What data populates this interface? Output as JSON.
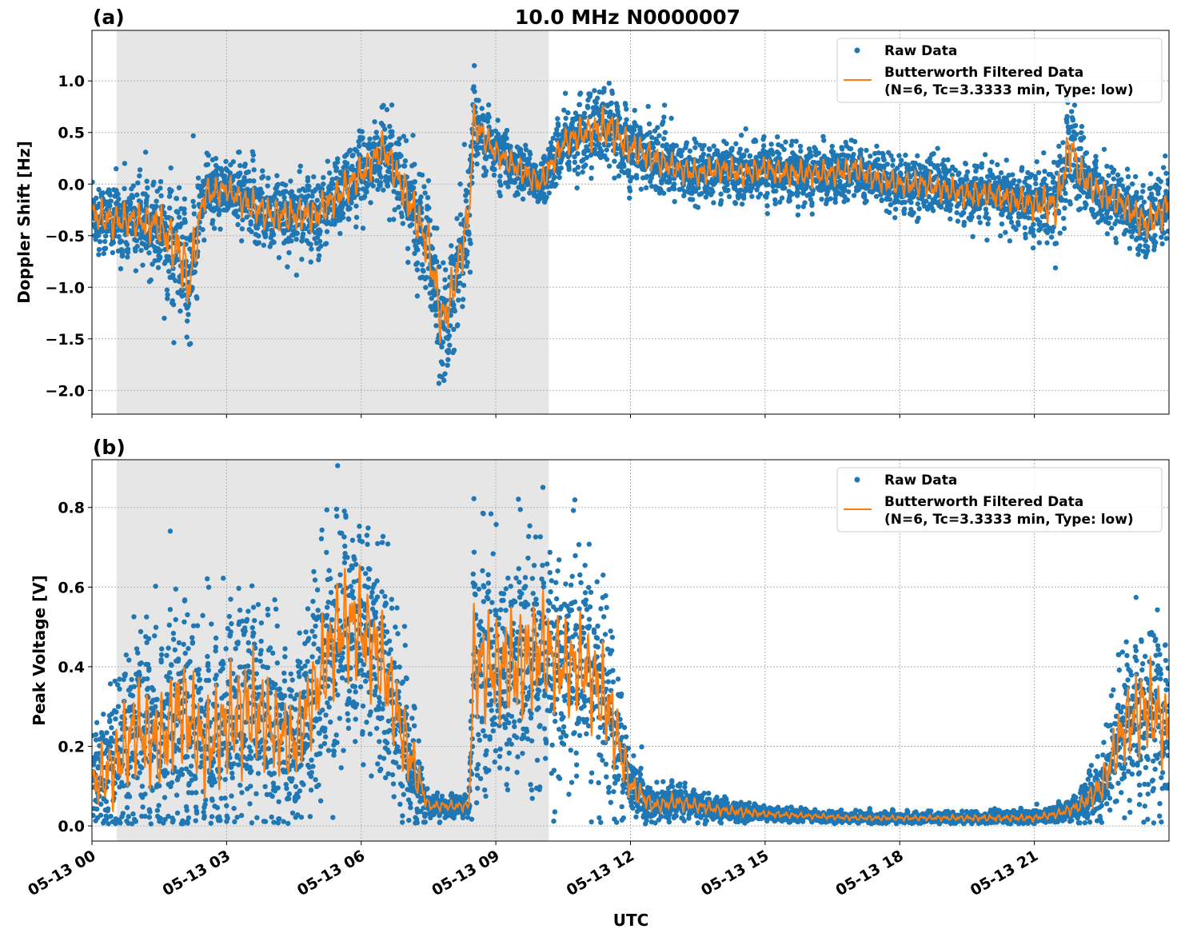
{
  "title": "10.0 MHz N0000007",
  "colors": {
    "raw": "#1f77b4",
    "filtered": "#ff7f0e",
    "shade": "#e6e6e6"
  },
  "chart_data": [
    {
      "type": "scatter+line",
      "panel_label": "(a)",
      "ylabel": "Doppler Shift [Hz]",
      "xlabel": "",
      "ylim": [
        -2.23,
        1.49
      ],
      "xlim_hours": [
        0,
        24
      ],
      "grid": true,
      "legend_placement": "top-right",
      "yticks": [
        "1.0",
        "0.5",
        "0.0",
        "−0.5",
        "−1.0",
        "−1.5",
        "−2.0"
      ],
      "ytick_values": [
        1.0,
        0.5,
        0.0,
        -0.5,
        -1.0,
        -1.5,
        -2.0
      ],
      "shaded_span_hours": [
        0.55,
        10.18
      ],
      "x_hours": [
        0,
        0.5,
        1,
        1.5,
        2,
        2.15,
        2.5,
        3,
        3.5,
        4,
        4.5,
        5,
        5.5,
        6,
        6.5,
        7,
        7.5,
        7.8,
        8,
        8.4,
        8.5,
        9,
        9.5,
        10,
        10.5,
        11,
        11.5,
        12,
        12.5,
        13,
        13.5,
        14,
        14.5,
        15,
        15.5,
        16,
        16.5,
        17,
        17.5,
        18,
        18.5,
        19,
        19.5,
        20,
        20.5,
        21,
        21.5,
        21.8,
        22,
        22.5,
        23,
        23.5,
        24
      ],
      "series": [
        {
          "name": "Butterworth Filtered Data\n(N=6, Tc=3.3333 min, Type: low)",
          "kind": "line",
          "values": [
            -0.3,
            -0.35,
            -0.35,
            -0.4,
            -0.7,
            -1.0,
            -0.1,
            -0.05,
            -0.2,
            -0.3,
            -0.3,
            -0.3,
            -0.1,
            0.1,
            0.35,
            -0.1,
            -0.6,
            -1.35,
            -1.1,
            -0.3,
            0.6,
            0.3,
            0.15,
            0.0,
            0.4,
            0.5,
            0.55,
            0.35,
            0.25,
            0.15,
            0.1,
            0.15,
            0.1,
            0.15,
            0.1,
            0.1,
            0.1,
            0.15,
            0.05,
            0.0,
            0.0,
            -0.05,
            -0.1,
            -0.1,
            -0.15,
            -0.2,
            -0.2,
            0.4,
            0.1,
            -0.1,
            -0.2,
            -0.4,
            -0.2
          ]
        },
        {
          "name": "Raw Data",
          "kind": "scatter",
          "spread": [
            0.2,
            0.2,
            0.2,
            0.25,
            0.35,
            0.4,
            0.2,
            0.15,
            0.2,
            0.2,
            0.2,
            0.2,
            0.2,
            0.2,
            0.2,
            0.25,
            0.3,
            0.35,
            0.3,
            0.3,
            0.2,
            0.15,
            0.15,
            0.15,
            0.15,
            0.2,
            0.25,
            0.2,
            0.18,
            0.15,
            0.15,
            0.15,
            0.15,
            0.15,
            0.15,
            0.15,
            0.15,
            0.15,
            0.15,
            0.15,
            0.15,
            0.15,
            0.15,
            0.15,
            0.15,
            0.18,
            0.25,
            0.3,
            0.2,
            0.18,
            0.18,
            0.2,
            0.2
          ]
        }
      ]
    },
    {
      "type": "scatter+line",
      "panel_label": "(b)",
      "ylabel": "Peak Voltage [V]",
      "xlabel": "UTC",
      "ylim": [
        -0.038,
        0.92
      ],
      "xlim_hours": [
        0,
        24
      ],
      "grid": true,
      "legend_placement": "top-right",
      "yticks": [
        "0.0",
        "0.2",
        "0.4",
        "0.6",
        "0.8"
      ],
      "ytick_values": [
        0.0,
        0.2,
        0.4,
        0.6,
        0.8
      ],
      "xticks": [
        "05-13 00",
        "05-13 03",
        "05-13 06",
        "05-13 09",
        "05-13 12",
        "05-13 15",
        "05-13 18",
        "05-13 21"
      ],
      "xtick_hours": [
        0,
        3,
        6,
        9,
        12,
        15,
        18,
        21
      ],
      "shaded_span_hours": [
        0.55,
        10.18
      ],
      "x_hours": [
        0,
        0.5,
        1,
        1.5,
        2,
        2.5,
        3,
        3.5,
        4,
        4.5,
        5,
        5.5,
        6,
        6.5,
        7,
        7.5,
        8,
        8.4,
        8.5,
        9,
        9.5,
        10,
        10.5,
        11,
        11.5,
        12,
        12.5,
        13,
        13.5,
        14,
        14.5,
        15,
        16,
        17,
        18,
        19,
        20,
        21,
        21.5,
        22,
        22.5,
        23,
        23.5,
        24
      ],
      "series": [
        {
          "name": "Butterworth Filtered Data\n(N=6, Tc=3.3333 min, Type: low)",
          "kind": "line",
          "values": [
            0.1,
            0.15,
            0.25,
            0.2,
            0.3,
            0.2,
            0.25,
            0.3,
            0.25,
            0.2,
            0.35,
            0.5,
            0.5,
            0.4,
            0.2,
            0.05,
            0.05,
            0.05,
            0.4,
            0.4,
            0.4,
            0.45,
            0.4,
            0.4,
            0.3,
            0.1,
            0.05,
            0.06,
            0.05,
            0.04,
            0.035,
            0.03,
            0.025,
            0.02,
            0.02,
            0.02,
            0.02,
            0.02,
            0.03,
            0.05,
            0.1,
            0.25,
            0.3,
            0.25
          ]
        },
        {
          "name": "Raw Data",
          "kind": "scatter",
          "spread": [
            0.08,
            0.12,
            0.15,
            0.15,
            0.17,
            0.15,
            0.17,
            0.18,
            0.15,
            0.12,
            0.15,
            0.17,
            0.17,
            0.15,
            0.12,
            0.015,
            0.015,
            0.015,
            0.17,
            0.17,
            0.18,
            0.17,
            0.15,
            0.15,
            0.15,
            0.05,
            0.02,
            0.025,
            0.02,
            0.015,
            0.015,
            0.01,
            0.008,
            0.008,
            0.008,
            0.008,
            0.01,
            0.01,
            0.012,
            0.02,
            0.05,
            0.12,
            0.15,
            0.12
          ]
        }
      ]
    }
  ]
}
